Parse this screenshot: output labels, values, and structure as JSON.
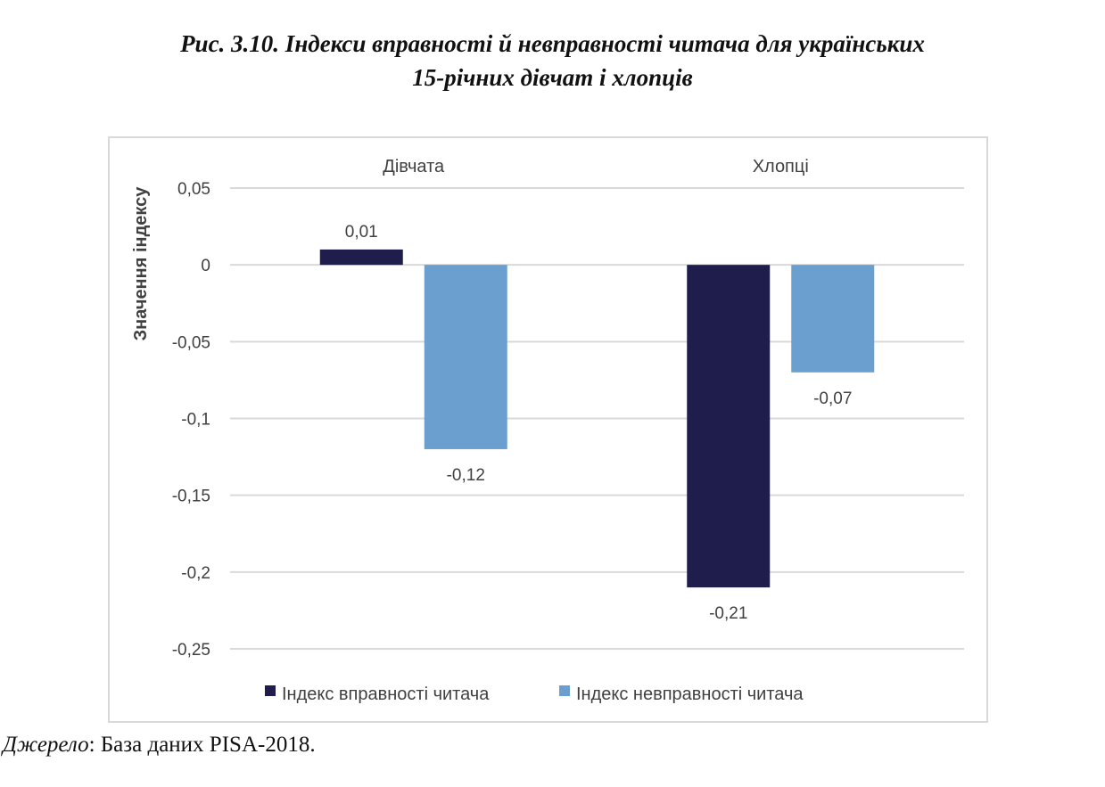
{
  "figure": {
    "title_line1": "Рис. 3.10. Індекси вправності й невправності читача для українських",
    "title_line2": "15-річних дівчат і хлопців"
  },
  "source": {
    "label": "Джерело",
    "separator": ": ",
    "text": "База даних PISA-2018."
  },
  "chart_data": {
    "type": "bar",
    "categories": [
      "Дівчата",
      "Хлопці"
    ],
    "series": [
      {
        "name": "Індекс вправності читача",
        "color": "#1f1d4b",
        "values": [
          0.01,
          -0.21
        ],
        "labels": [
          "0,01",
          "-0,21"
        ]
      },
      {
        "name": "Індекс невправності читача",
        "color": "#6a9fcf",
        "values": [
          -0.12,
          -0.07
        ],
        "labels": [
          "-0,12",
          "-0,07"
        ]
      }
    ],
    "ylabel": "Значення індексу",
    "ylim": [
      -0.25,
      0.05
    ],
    "yticks": [
      0.05,
      0,
      -0.05,
      -0.1,
      -0.15,
      -0.2,
      -0.25
    ],
    "ytick_labels": [
      "0,05",
      "0",
      "-0,05",
      "-0,1",
      "-0,15",
      "-0,2",
      "-0,25"
    ],
    "category_labels_position": "top",
    "grid": true,
    "legend_position": "bottom"
  }
}
